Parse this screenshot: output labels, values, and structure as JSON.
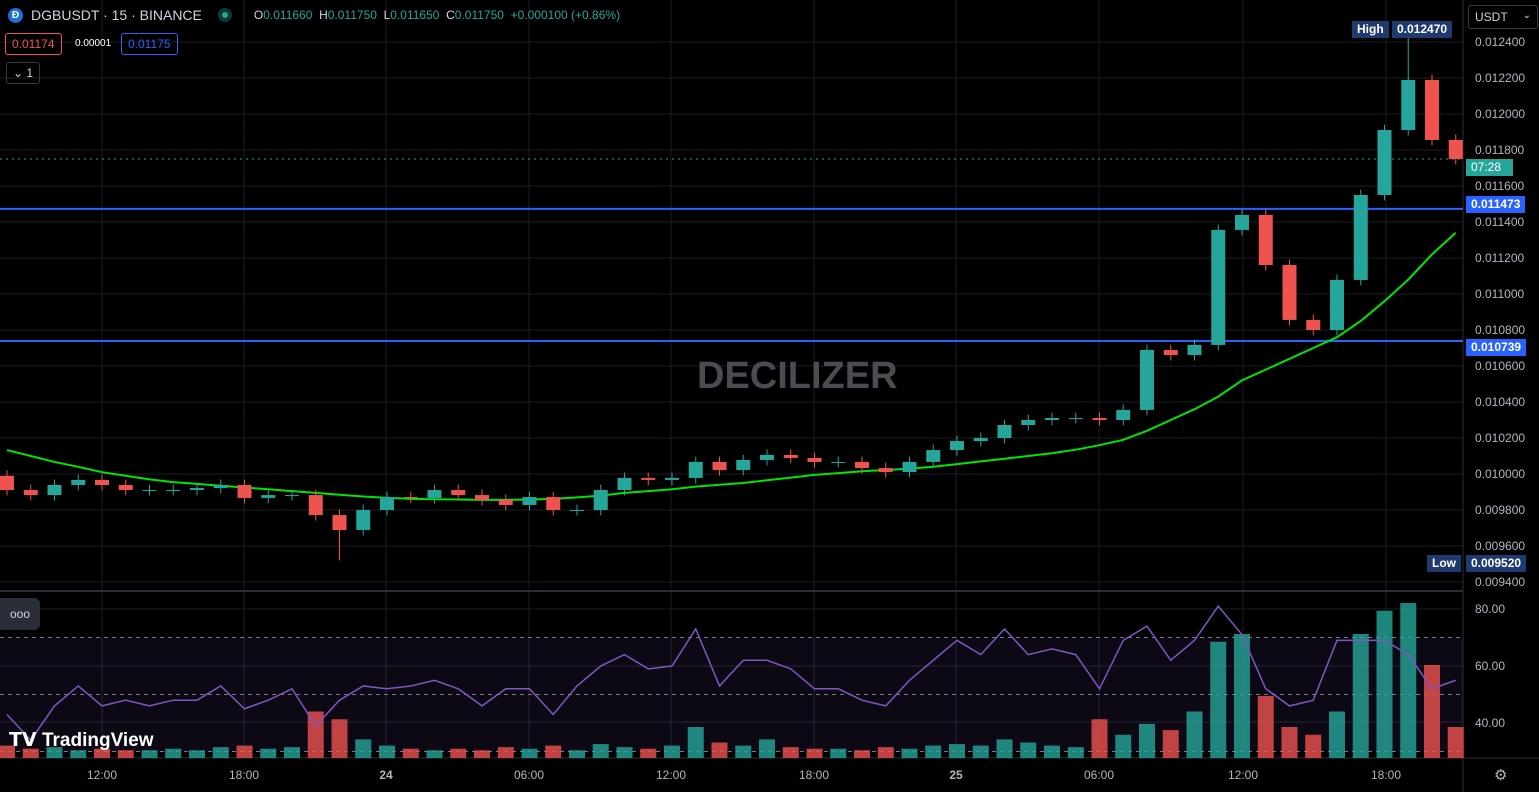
{
  "header": {
    "symbol": "DGBUSDT · 15 · BINANCE",
    "o_label": "O",
    "o": "0.011660",
    "h_label": "H",
    "h": "0.011750",
    "l_label": "L",
    "l": "0.011650",
    "c_label": "C",
    "c": "0.011750",
    "change": "+0.000100 (+0.86%)",
    "sell": "0.01174",
    "spread": "0.00001",
    "buy": "0.01175",
    "collapse": "1",
    "currency": "USDT"
  },
  "watermark": "DECILIZER",
  "logo": "TradingView",
  "labels": {
    "high": "High",
    "low": "Low",
    "high_value": "0.012470",
    "low_value": "0.009520",
    "countdown": "07:28",
    "line1": "0.011473",
    "line2": "0.010739"
  },
  "colors": {
    "up": "#26a69a",
    "down": "#ef5350",
    "ma": "#00e600",
    "rsi": "#7e57c2",
    "hline": "#2962ff"
  },
  "chart_data": {
    "type": "candlestick",
    "price_ticks": [
      "0.012400",
      "0.012200",
      "0.012000",
      "0.011800",
      "0.011600",
      "0.011400",
      "0.011200",
      "0.011000",
      "0.010800",
      "0.010600",
      "0.010400",
      "0.010200",
      "0.010000",
      "0.009800",
      "0.009600",
      "0.009400"
    ],
    "ylim": [
      0.0094,
      0.0124
    ],
    "time_ticks": [
      "12:00",
      "18:00",
      "24",
      "06:00",
      "12:00",
      "18:00",
      "25",
      "06:00",
      "12:00",
      "18:00"
    ],
    "horizontal_lines": [
      0.011473,
      0.010739
    ],
    "last_price": 0.01175,
    "close": [
      0.009911,
      0.009883,
      0.009939,
      0.009967,
      0.009939,
      0.009911,
      0.009911,
      0.009911,
      0.009922,
      0.009939,
      0.009867,
      0.009883,
      0.009883,
      0.009772,
      0.009689,
      0.0098,
      0.009872,
      0.009867,
      0.009911,
      0.009883,
      0.009856,
      0.009828,
      0.009872,
      0.0098,
      0.0098,
      0.009911,
      0.009978,
      0.009967,
      0.009978,
      0.010067,
      0.010022,
      0.010078,
      0.010106,
      0.010089,
      0.010067,
      0.010067,
      0.010033,
      0.010011,
      0.010067,
      0.010133,
      0.010183,
      0.0102,
      0.010272,
      0.0103,
      0.010311,
      0.010311,
      0.0103,
      0.010356,
      0.010689,
      0.010661,
      0.010717,
      0.011356,
      0.011439,
      0.011161,
      0.010856,
      0.0108,
      0.011078,
      0.01155,
      0.011911,
      0.012189,
      0.011856,
      0.01175
    ],
    "first_open": 0.00999,
    "extreme_high": 0.01247,
    "extreme_low": 0.00952,
    "ma": [
      0.010133,
      0.0101,
      0.010067,
      0.01004,
      0.01001,
      0.00999,
      0.00997,
      0.009955,
      0.009945,
      0.009935,
      0.009925,
      0.009915,
      0.009905,
      0.009895,
      0.009885,
      0.009875,
      0.009868,
      0.009862,
      0.00986,
      0.009858,
      0.009856,
      0.009856,
      0.009858,
      0.009862,
      0.00987,
      0.00988,
      0.009895,
      0.009905,
      0.009915,
      0.00993,
      0.00994,
      0.00995,
      0.009965,
      0.00998,
      0.009995,
      0.010005,
      0.010015,
      0.010022,
      0.01003,
      0.01004,
      0.010055,
      0.01007,
      0.010085,
      0.0101,
      0.010115,
      0.010135,
      0.01016,
      0.01019,
      0.01024,
      0.0103,
      0.01036,
      0.01043,
      0.01052,
      0.01058,
      0.01064,
      0.0107,
      0.01076,
      0.01085,
      0.01096,
      0.01108,
      0.01122,
      0.01134
    ],
    "rsi_ticks": [
      "80.00",
      "60.00",
      "40.00"
    ],
    "rsi_levels": [
      70,
      50,
      30
    ],
    "rsi": [
      43,
      34,
      46,
      53,
      46,
      48,
      46,
      48,
      48,
      53,
      45,
      48,
      52,
      39,
      48,
      53,
      52,
      53,
      55,
      52,
      46,
      52,
      52,
      43,
      53,
      60,
      64,
      59,
      60,
      73,
      53,
      62,
      62,
      59,
      52,
      52,
      48,
      46,
      55,
      62,
      69,
      64,
      73,
      64,
      66,
      64,
      52,
      69,
      74,
      62,
      69,
      81,
      71,
      52,
      46,
      48,
      69,
      69,
      69,
      64,
      52,
      55
    ],
    "volume_relative": [
      8,
      6,
      7,
      5,
      6,
      5,
      5,
      6,
      5,
      7,
      8,
      6,
      7,
      30,
      25,
      12,
      8,
      6,
      5,
      6,
      5,
      7,
      6,
      8,
      5,
      9,
      7,
      6,
      8,
      20,
      10,
      8,
      12,
      7,
      6,
      6,
      5,
      7,
      6,
      8,
      9,
      8,
      12,
      10,
      8,
      7,
      25,
      15,
      22,
      18,
      30,
      75,
      80,
      40,
      20,
      15,
      30,
      80,
      95,
      100,
      60,
      20
    ]
  }
}
